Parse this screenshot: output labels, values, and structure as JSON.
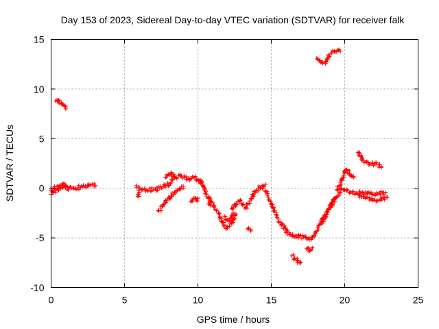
{
  "chart_data": {
    "type": "scatter",
    "title": "Day 153 of 2023, Sidereal Day-to-day VTEC variation (SDTVAR) for receiver falk",
    "xlabel": "GPS time / hours",
    "ylabel": "SDTVAR / TECUs",
    "xlim": [
      0,
      25
    ],
    "ylim": [
      -10,
      15
    ],
    "xticks": [
      0,
      5,
      10,
      15,
      20,
      25
    ],
    "yticks": [
      -10,
      -5,
      0,
      5,
      10,
      15
    ],
    "xtick_labels": [
      "0",
      "5",
      "10",
      "15",
      "20",
      "25"
    ],
    "ytick_labels": [
      "-10",
      "-5",
      "0",
      "5",
      "10",
      "15"
    ],
    "grid": true,
    "marker": "+",
    "series": [
      {
        "name": "SDTVAR",
        "color": "#ff0000",
        "segments": [
          {
            "x": [
              0.0,
              0.2,
              0.4,
              0.6,
              0.8,
              1.0
            ],
            "y": [
              -0.6,
              -0.3,
              -0.1,
              0.1,
              0.1,
              0.2
            ]
          },
          {
            "x": [
              0.0,
              0.2,
              0.4,
              0.6,
              0.8,
              1.0,
              1.1
            ],
            "y": [
              -0.2,
              0.0,
              0.2,
              0.3,
              0.4,
              0.3,
              0.1
            ]
          },
          {
            "x": [
              0.3,
              0.5,
              0.7,
              0.9,
              1.0
            ],
            "y": [
              8.8,
              8.8,
              8.6,
              8.3,
              8.0
            ]
          },
          {
            "x": [
              1.1,
              1.5,
              2.0,
              2.5,
              2.8,
              3.0
            ],
            "y": [
              -0.1,
              0.0,
              0.1,
              0.2,
              0.4,
              0.3
            ]
          },
          {
            "x": [
              5.8,
              6.2,
              6.6,
              7.0,
              7.4,
              7.8,
              8.2
            ],
            "y": [
              0.1,
              -0.1,
              -0.2,
              -0.1,
              0.0,
              0.3,
              0.6
            ]
          },
          {
            "x": [
              8.2,
              8.5,
              8.8,
              9.1,
              9.4,
              9.7,
              10.0,
              10.2
            ],
            "y": [
              0.9,
              1.1,
              1.3,
              1.1,
              1.0,
              1.1,
              0.9,
              0.5
            ]
          },
          {
            "x": [
              7.8,
              8.0,
              8.2,
              8.4
            ],
            "y": [
              1.1,
              1.4,
              1.6,
              1.2
            ]
          },
          {
            "x": [
              7.3,
              7.6,
              7.9,
              8.2,
              8.6,
              9.0
            ],
            "y": [
              -2.3,
              -1.8,
              -1.2,
              -0.7,
              -0.2,
              0.2
            ]
          },
          {
            "x": [
              5.9,
              6.0
            ],
            "y": [
              -0.8,
              -0.4
            ]
          },
          {
            "x": [
              9.5,
              9.7,
              9.9,
              10.0
            ],
            "y": [
              -1.3,
              -1.0,
              -1.2,
              -1.0
            ]
          },
          {
            "x": [
              10.2,
              10.4,
              10.6,
              10.9,
              11.1,
              11.3
            ],
            "y": [
              0.8,
              0.1,
              -0.6,
              -1.3,
              -1.9,
              -2.2
            ]
          },
          {
            "x": [
              10.7,
              10.9
            ],
            "y": [
              -1.6,
              -1.7
            ]
          },
          {
            "x": [
              11.4,
              11.6,
              11.8,
              12.0,
              12.3,
              12.6
            ],
            "y": [
              -2.5,
              -3.3,
              -3.8,
              -4.0,
              -3.4,
              -2.6
            ]
          },
          {
            "x": [
              11.8,
              12.0,
              12.2,
              12.4
            ],
            "y": [
              -2.8,
              -3.2,
              -3.0,
              -2.6
            ]
          },
          {
            "x": [
              12.3,
              12.6,
              12.9,
              13.1
            ],
            "y": [
              -2.0,
              -1.5,
              -1.2,
              -1.6
            ]
          },
          {
            "x": [
              13.2,
              13.5,
              13.8,
              14.1,
              14.4,
              14.6
            ],
            "y": [
              -2.0,
              -1.5,
              -0.6,
              0.0,
              0.2,
              0.4
            ]
          },
          {
            "x": [
              13.4,
              13.6
            ],
            "y": [
              -4.1,
              -4.3
            ]
          },
          {
            "x": [
              14.6,
              14.8,
              15.0,
              15.2,
              15.5,
              15.8,
              16.1
            ],
            "y": [
              -0.2,
              -0.9,
              -1.6,
              -2.3,
              -3.1,
              -3.8,
              -4.3
            ]
          },
          {
            "x": [
              16.0,
              16.3,
              16.6,
              16.9,
              17.2,
              17.5,
              17.8,
              18.0
            ],
            "y": [
              -4.3,
              -4.6,
              -4.9,
              -4.8,
              -4.9,
              -5.1,
              -4.9,
              -4.6
            ]
          },
          {
            "x": [
              16.4,
              16.6,
              16.8,
              17.0
            ],
            "y": [
              -6.8,
              -7.1,
              -7.3,
              -7.5
            ]
          },
          {
            "x": [
              17.4,
              17.6,
              17.8
            ],
            "y": [
              -6.1,
              -6.3,
              -6.0
            ]
          },
          {
            "x": [
              18.0,
              18.3,
              18.6,
              18.9,
              19.2,
              19.5,
              19.7
            ],
            "y": [
              -4.5,
              -3.6,
              -3.0,
              -2.2,
              -1.4,
              -0.8,
              -0.4
            ]
          },
          {
            "x": [
              18.4,
              18.7,
              19.0,
              19.3
            ],
            "y": [
              -3.5,
              -2.8,
              -1.9,
              -1.0
            ]
          },
          {
            "x": [
              19.5,
              19.7,
              19.9,
              20.1,
              20.4,
              20.6
            ],
            "y": [
              -0.2,
              0.3,
              1.1,
              1.9,
              1.4,
              1.2
            ]
          },
          {
            "x": [
              19.7,
              20.0,
              20.4,
              20.8,
              21.2,
              21.6,
              22.0,
              22.4,
              22.8
            ],
            "y": [
              -0.1,
              -0.2,
              -0.4,
              -0.5,
              -0.4,
              -0.5,
              -0.6,
              -0.5,
              -0.4
            ]
          },
          {
            "x": [
              21.0,
              21.4,
              21.8,
              22.2,
              22.6,
              22.9
            ],
            "y": [
              -0.9,
              -1.0,
              -1.1,
              -1.2,
              -1.0,
              -0.9
            ]
          },
          {
            "x": [
              20.9,
              21.1,
              21.3,
              21.6,
              21.9,
              22.2,
              22.5
            ],
            "y": [
              3.6,
              3.2,
              2.8,
              2.6,
              2.5,
              2.4,
              2.1
            ]
          },
          {
            "x": [
              18.1,
              18.3,
              18.5,
              18.7,
              18.9,
              19.1,
              19.3,
              19.5,
              19.7
            ],
            "y": [
              13.1,
              12.9,
              12.7,
              12.8,
              13.2,
              13.6,
              13.8,
              13.9,
              13.8
            ]
          }
        ]
      }
    ]
  }
}
